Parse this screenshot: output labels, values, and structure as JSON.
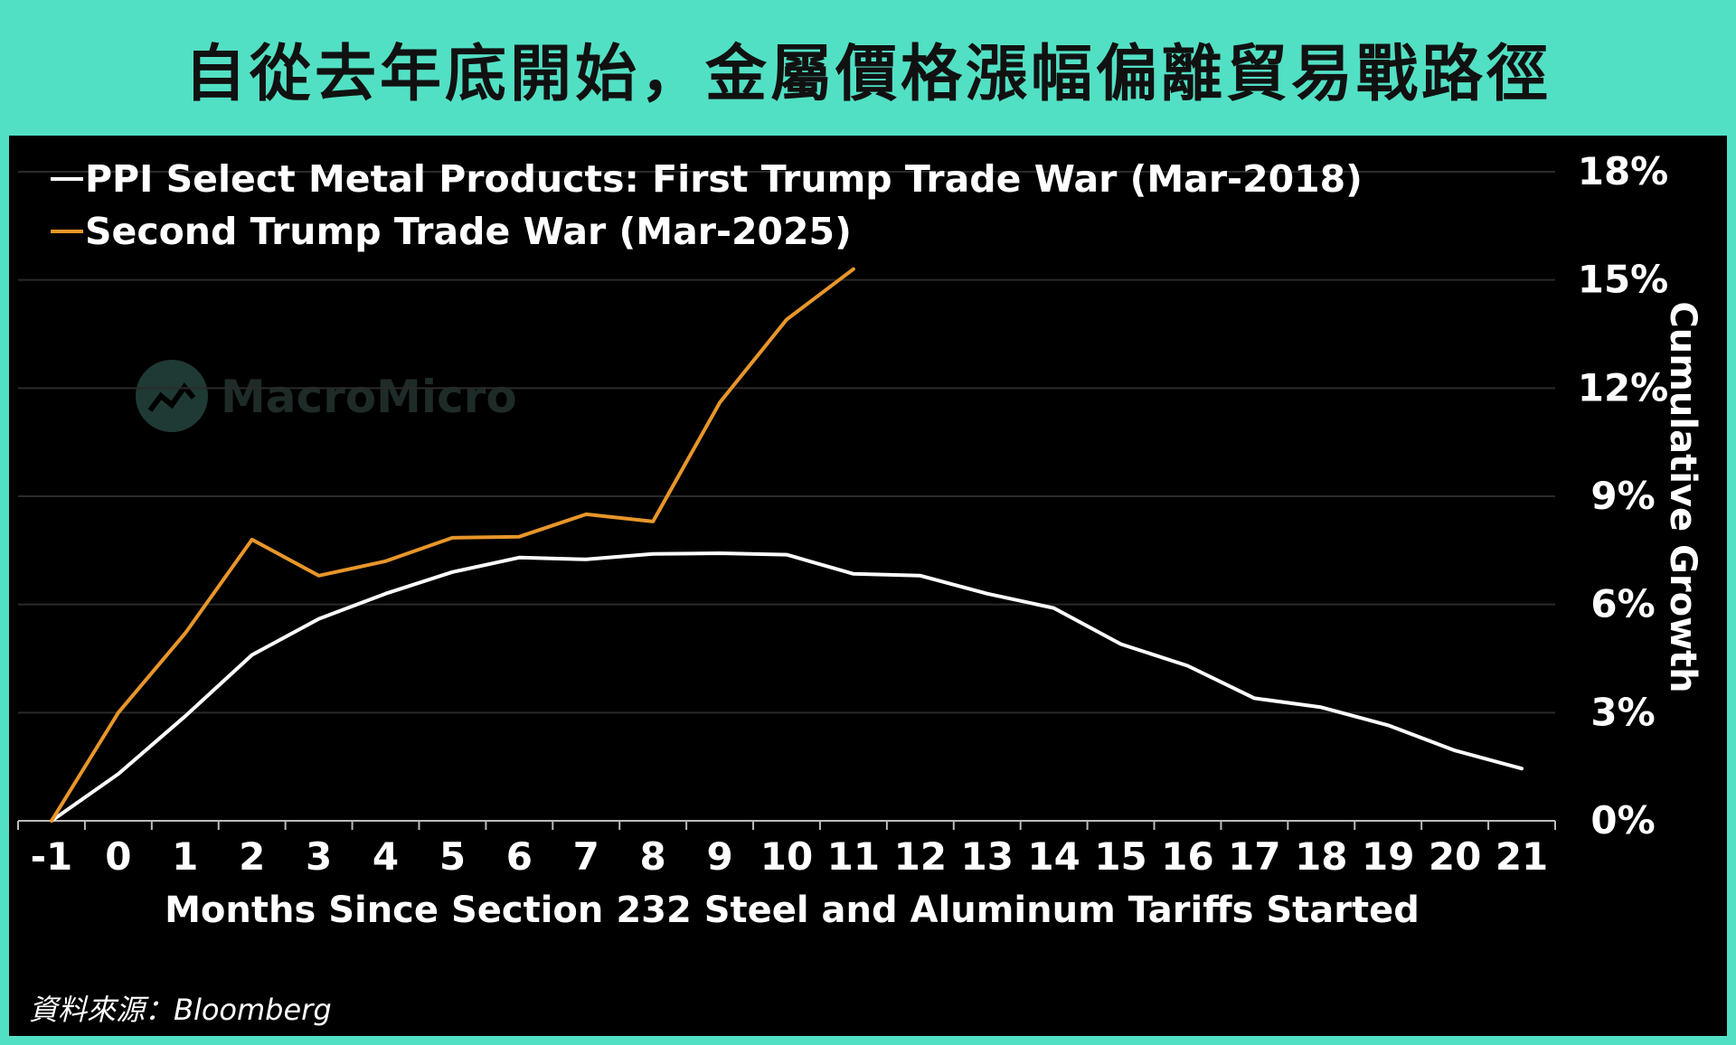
{
  "title": "自從去年底開始，金屬價格漲幅偏離貿易戰路徑",
  "source": "資料來源：Bloomberg",
  "watermark": "MacroMicro",
  "colors": {
    "background": "#52e0c4",
    "panel": "#000000",
    "series_first": "#ffffff",
    "series_second": "#e8962a",
    "grid": "#2a2a2a"
  },
  "chart_data": {
    "type": "line",
    "xlabel": "Months Since Section 232 Steel and Aluminum Tariffs Started",
    "ylabel": "Cumulative Growth",
    "x": [
      -1,
      0,
      1,
      2,
      3,
      4,
      5,
      6,
      7,
      8,
      9,
      10,
      11,
      12,
      13,
      14,
      15,
      16,
      17,
      18,
      19,
      20,
      21
    ],
    "xlim": [
      -1.5,
      21.5
    ],
    "ylim": [
      0,
      18
    ],
    "yticks": [
      0,
      3,
      6,
      9,
      12,
      15,
      18
    ],
    "ytick_labels": [
      "0%",
      "3%",
      "6%",
      "9%",
      "12%",
      "15%",
      "18%"
    ],
    "grid": true,
    "legend_position": "top-left",
    "series": [
      {
        "name": "PPI Select Metal Products: First Trump Trade War (Mar-2018)",
        "color": "#ffffff",
        "x": [
          -1,
          0,
          1,
          2,
          3,
          4,
          5,
          6,
          7,
          8,
          9,
          10,
          11,
          12,
          13,
          14,
          15,
          16,
          17,
          18,
          19,
          20,
          21
        ],
        "values": [
          0,
          1.3,
          2.9,
          4.6,
          5.6,
          6.3,
          6.9,
          7.3,
          7.25,
          7.4,
          7.42,
          7.38,
          6.85,
          6.8,
          6.3,
          5.9,
          4.9,
          4.3,
          3.4,
          3.15,
          2.65,
          1.95,
          1.45
        ]
      },
      {
        "name": "Second Trump Trade War (Mar-2025)",
        "color": "#e8962a",
        "x": [
          -1,
          0,
          1,
          2,
          3,
          4,
          5,
          6,
          7,
          8,
          9,
          10,
          11
        ],
        "values": [
          0,
          3.0,
          5.2,
          7.8,
          6.8,
          7.2,
          7.85,
          7.88,
          8.5,
          8.3,
          11.6,
          13.9,
          15.3
        ]
      }
    ]
  }
}
